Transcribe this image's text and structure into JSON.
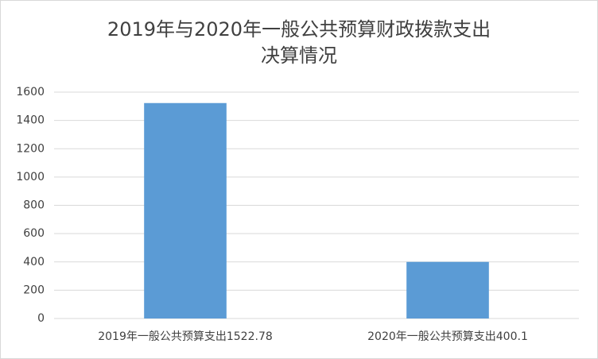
{
  "chart_data": {
    "type": "bar",
    "title": [
      "2019年与2020年一般公共预算财政拨款支出",
      "决算情况"
    ],
    "categories": [
      "2019年一般公共预算支出1522.78",
      "2020年一般公共预算支出400.1"
    ],
    "values": [
      1522.78,
      400.1
    ],
    "color": "#5b9bd5",
    "ylim": [
      0,
      1600
    ],
    "yticks": [
      0,
      200,
      400,
      600,
      800,
      1000,
      1200,
      1400,
      1600
    ],
    "grid": true
  }
}
